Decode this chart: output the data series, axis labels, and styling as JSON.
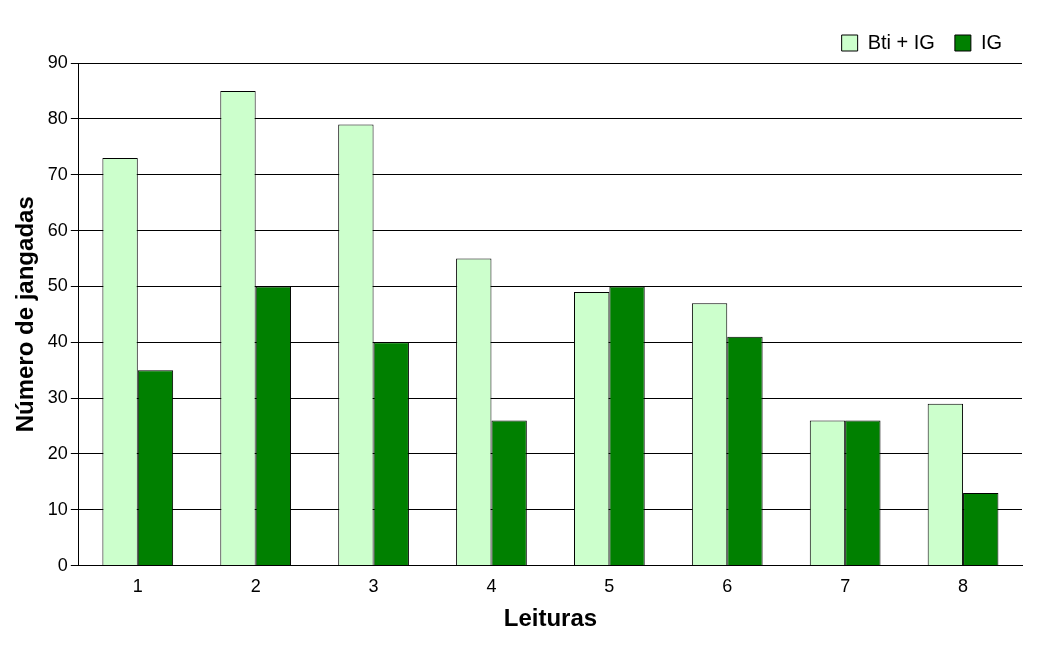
{
  "chart_data": {
    "type": "bar",
    "xlabel": "Leituras",
    "ylabel": "Número de jangadas",
    "categories": [
      "1",
      "2",
      "3",
      "4",
      "5",
      "6",
      "7",
      "8"
    ],
    "series": [
      {
        "name": "Bti + IG",
        "color": "#ccffcc",
        "values": [
          73,
          85,
          79,
          55,
          49,
          47,
          26,
          29
        ]
      },
      {
        "name": "IG",
        "color": "#008000",
        "values": [
          35,
          50,
          40,
          26,
          50,
          41,
          26,
          13
        ]
      }
    ],
    "ylim": [
      0,
      90
    ],
    "yticks": [
      0,
      10,
      20,
      30,
      40,
      50,
      60,
      70,
      80,
      90
    ],
    "grid": "y",
    "legend": "top right"
  }
}
